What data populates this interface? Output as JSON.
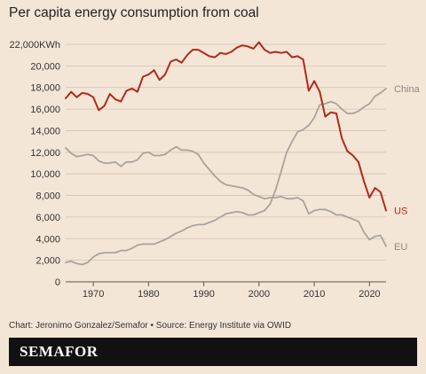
{
  "page": {
    "title": "Per capita energy consumption from coal",
    "source": "Chart: Jeronimo Gonzalez/Semafor • Source: Energy Institute via OWID",
    "brand": "SEMAFOR"
  },
  "colors": {
    "background": "#f4e6d6",
    "us": "#b02a1a",
    "china": "#a8a39e",
    "eu": "#a8a39e",
    "grid": "#cfc3b6"
  },
  "chart_data": {
    "type": "line",
    "title": "Per capita energy consumption from coal",
    "xlabel": "",
    "ylabel": "",
    "xlim": [
      1965,
      2023
    ],
    "ylim": [
      0,
      22000
    ],
    "x_ticks": [
      1970,
      1980,
      1990,
      2000,
      2010,
      2020
    ],
    "y_ticks": [
      {
        "value": 0,
        "label": "0"
      },
      {
        "value": 2000,
        "label": "2,000"
      },
      {
        "value": 4000,
        "label": "4,000"
      },
      {
        "value": 6000,
        "label": "6,000"
      },
      {
        "value": 8000,
        "label": "8,000"
      },
      {
        "value": 10000,
        "label": "10,000"
      },
      {
        "value": 12000,
        "label": "12,000"
      },
      {
        "value": 14000,
        "label": "14,000"
      },
      {
        "value": 16000,
        "label": "16,000"
      },
      {
        "value": 18000,
        "label": "18,000"
      },
      {
        "value": 20000,
        "label": "20,000"
      },
      {
        "value": 22000,
        "label": "22,000KWh"
      }
    ],
    "grid": true,
    "legend": "inline labels at line ends",
    "x": [
      1965,
      1966,
      1967,
      1968,
      1969,
      1970,
      1971,
      1972,
      1973,
      1974,
      1975,
      1976,
      1977,
      1978,
      1979,
      1980,
      1981,
      1982,
      1983,
      1984,
      1985,
      1986,
      1987,
      1988,
      1989,
      1990,
      1991,
      1992,
      1993,
      1994,
      1995,
      1996,
      1997,
      1998,
      1999,
      2000,
      2001,
      2002,
      2003,
      2004,
      2005,
      2006,
      2007,
      2008,
      2009,
      2010,
      2011,
      2012,
      2013,
      2014,
      2015,
      2016,
      2017,
      2018,
      2019,
      2020,
      2021,
      2022,
      2023
    ],
    "series": [
      {
        "name": "US",
        "color_key": "us",
        "values": [
          17000,
          17600,
          17100,
          17500,
          17400,
          17100,
          15900,
          16300,
          17400,
          16900,
          16700,
          17700,
          17900,
          17600,
          19000,
          19200,
          19600,
          18700,
          19200,
          20400,
          20600,
          20300,
          21000,
          21500,
          21500,
          21200,
          20900,
          20800,
          21200,
          21100,
          21300,
          21700,
          21900,
          21800,
          21600,
          22200,
          21500,
          21200,
          21300,
          21200,
          21300,
          20800,
          20900,
          20600,
          17700,
          18600,
          17600,
          15300,
          15700,
          15600,
          13300,
          12100,
          11700,
          11100,
          9300,
          7800,
          8700,
          8300,
          6600
        ]
      },
      {
        "name": "China",
        "color_key": "china",
        "values": [
          1800,
          1900,
          1700,
          1600,
          1800,
          2300,
          2600,
          2700,
          2700,
          2700,
          2900,
          2900,
          3100,
          3400,
          3500,
          3500,
          3500,
          3700,
          3900,
          4200,
          4500,
          4700,
          5000,
          5200,
          5300,
          5300,
          5500,
          5700,
          6000,
          6300,
          6400,
          6500,
          6400,
          6200,
          6200,
          6400,
          6600,
          7200,
          8500,
          10200,
          12000,
          13000,
          13900,
          14100,
          14500,
          15200,
          16400,
          16500,
          16700,
          16500,
          16000,
          15600,
          15600,
          15800,
          16200,
          16500,
          17200,
          17500,
          17900
        ]
      },
      {
        "name": "EU",
        "color_key": "eu",
        "values": [
          12400,
          11900,
          11600,
          11700,
          11800,
          11700,
          11200,
          11000,
          11000,
          11100,
          10700,
          11100,
          11100,
          11300,
          11900,
          12000,
          11700,
          11700,
          11800,
          12200,
          12500,
          12200,
          12200,
          12100,
          11800,
          11000,
          10400,
          9800,
          9300,
          9000,
          8900,
          8800,
          8700,
          8500,
          8100,
          7900,
          7700,
          7800,
          7800,
          7900,
          7700,
          7700,
          7800,
          7500,
          6300,
          6600,
          6700,
          6700,
          6500,
          6200,
          6200,
          6000,
          5800,
          5600,
          4600,
          3900,
          4200,
          4300,
          3300
        ]
      }
    ]
  }
}
